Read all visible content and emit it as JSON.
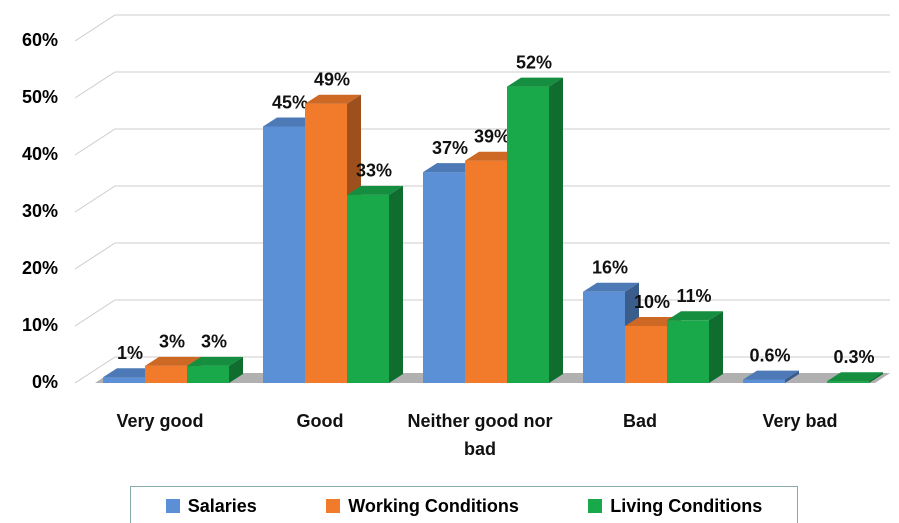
{
  "chart_data": {
    "type": "bar3d",
    "categories": [
      "Very good",
      "Good",
      "Neither good nor bad",
      "Bad",
      "Very bad"
    ],
    "series": [
      {
        "name": "Salaries",
        "color": "#5b8fd6",
        "values": [
          1,
          45,
          37,
          16,
          0.6
        ],
        "value_labels": [
          "1%",
          "45%",
          "37%",
          "16%",
          "0.6%"
        ]
      },
      {
        "name": "Working Conditions",
        "color": "#f27b2b",
        "values": [
          3,
          49,
          39,
          10,
          null
        ],
        "value_labels": [
          "3%",
          "49%",
          "39%",
          "10%",
          null
        ]
      },
      {
        "name": "Living Conditions",
        "color": "#19a84a",
        "values": [
          3,
          33,
          52,
          11,
          0.3
        ],
        "value_labels": [
          "3%",
          "33%",
          "52%",
          "11%",
          "0.3%"
        ]
      }
    ],
    "ylim": [
      0,
      60
    ],
    "yticks": [
      {
        "value": 0,
        "label": "0%"
      },
      {
        "value": 10,
        "label": "10%"
      },
      {
        "value": 20,
        "label": "20%"
      },
      {
        "value": 30,
        "label": "30%"
      },
      {
        "value": 40,
        "label": "40%"
      },
      {
        "value": 50,
        "label": "50%"
      },
      {
        "value": 60,
        "label": "60%"
      }
    ],
    "grid": true,
    "legend": "bottom"
  }
}
